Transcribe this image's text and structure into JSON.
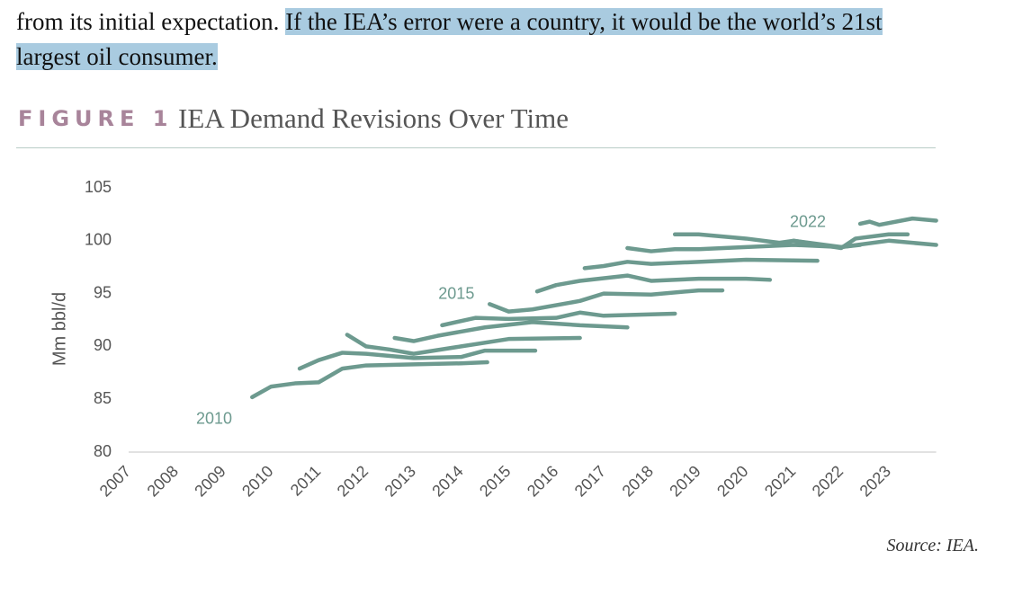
{
  "document": {
    "paragraph_start": "from its initial expectation.",
    "highlight": [
      "If the IEA’s error were a country, it would be the world’s 21st",
      "largest oil consumer."
    ]
  },
  "chart_data": {
    "type": "line",
    "figure_label": "FIGURE 1",
    "title": "IEA Demand Revisions Over Time",
    "y_label": "Mm bbl/d",
    "source": "Source: IEA.",
    "color": "#6d9a8f",
    "grid": false,
    "xlim": [
      2007,
      2024
    ],
    "xticks": [
      2007,
      2008,
      2009,
      2010,
      2011,
      2012,
      2013,
      2014,
      2015,
      2016,
      2017,
      2018,
      2019,
      2020,
      2021,
      2022,
      2023
    ],
    "ylim": [
      80,
      105
    ],
    "yticks": [
      80,
      85,
      90,
      95,
      100,
      105
    ],
    "annotations": [
      {
        "text": "2010",
        "x": 2008.8,
        "y": 83.1
      },
      {
        "text": "2015",
        "x": 2013.9,
        "y": 94.9
      },
      {
        "text": "2022",
        "x": 2021.3,
        "y": 101.7
      }
    ],
    "series": [
      {
        "x": [
          2009.6,
          2010,
          2010.5,
          2011,
          2011.5,
          2012,
          2013,
          2014,
          2014.55
        ],
        "values": [
          85.2,
          86.2,
          86.5,
          86.6,
          87.9,
          88.2,
          88.3,
          88.4,
          88.5
        ]
      },
      {
        "x": [
          2010.6,
          2011,
          2011.5,
          2012,
          2013,
          2014,
          2014.5,
          2015.56
        ],
        "values": [
          87.9,
          88.7,
          89.4,
          89.3,
          88.9,
          89.0,
          89.6,
          89.6
        ]
      },
      {
        "x": [
          2011.6,
          2012,
          2012.5,
          2013,
          2014,
          2015,
          2016.5
        ],
        "values": [
          91.1,
          90.0,
          89.7,
          89.3,
          90.0,
          90.7,
          90.8
        ]
      },
      {
        "x": [
          2012.6,
          2013,
          2013.5,
          2014.5,
          2015.5,
          2016.5,
          2017.5
        ],
        "values": [
          90.8,
          90.5,
          91.0,
          91.8,
          92.3,
          92.0,
          91.8
        ]
      },
      {
        "x": [
          2013.6,
          2014.3,
          2015,
          2016,
          2016.5,
          2017,
          2018.5
        ],
        "values": [
          92.0,
          92.7,
          92.6,
          92.7,
          93.2,
          92.9,
          93.1
        ]
      },
      {
        "x": [
          2014.6,
          2015,
          2015.5,
          2016.5,
          2017,
          2018,
          2019,
          2019.5
        ],
        "values": [
          94.0,
          93.3,
          93.5,
          94.3,
          95.0,
          94.9,
          95.3,
          95.3
        ]
      },
      {
        "x": [
          2015.6,
          2016,
          2016.5,
          2017.5,
          2018,
          2019,
          2020,
          2020.5
        ],
        "values": [
          95.2,
          95.8,
          96.2,
          96.7,
          96.2,
          96.4,
          96.4,
          96.3
        ]
      },
      {
        "x": [
          2016.6,
          2017,
          2017.5,
          2018,
          2019,
          2020,
          2021.5
        ],
        "values": [
          97.4,
          97.6,
          98.0,
          97.8,
          98.0,
          98.2,
          98.1
        ]
      },
      {
        "x": [
          2017.5,
          2018,
          2018.5,
          2019,
          2020,
          2021,
          2022,
          2022.4
        ],
        "values": [
          99.3,
          99.0,
          99.2,
          99.2,
          99.4,
          99.6,
          99.4,
          99.6
        ]
      },
      {
        "x": [
          2018.5,
          2019,
          2020,
          2020.7,
          2021,
          2022,
          2023,
          2024
        ],
        "values": [
          100.6,
          100.6,
          100.2,
          99.8,
          100.0,
          99.4,
          100.0,
          99.6
        ]
      },
      {
        "x": [
          2021,
          2022,
          2022.3,
          2023,
          2023.4
        ],
        "values": [
          100.0,
          99.3,
          100.2,
          100.6,
          100.6
        ]
      },
      {
        "x": [
          2022.4,
          2022.6,
          2022.8,
          2023.5,
          2024
        ],
        "values": [
          101.6,
          101.8,
          101.5,
          102.1,
          101.9
        ]
      }
    ]
  }
}
